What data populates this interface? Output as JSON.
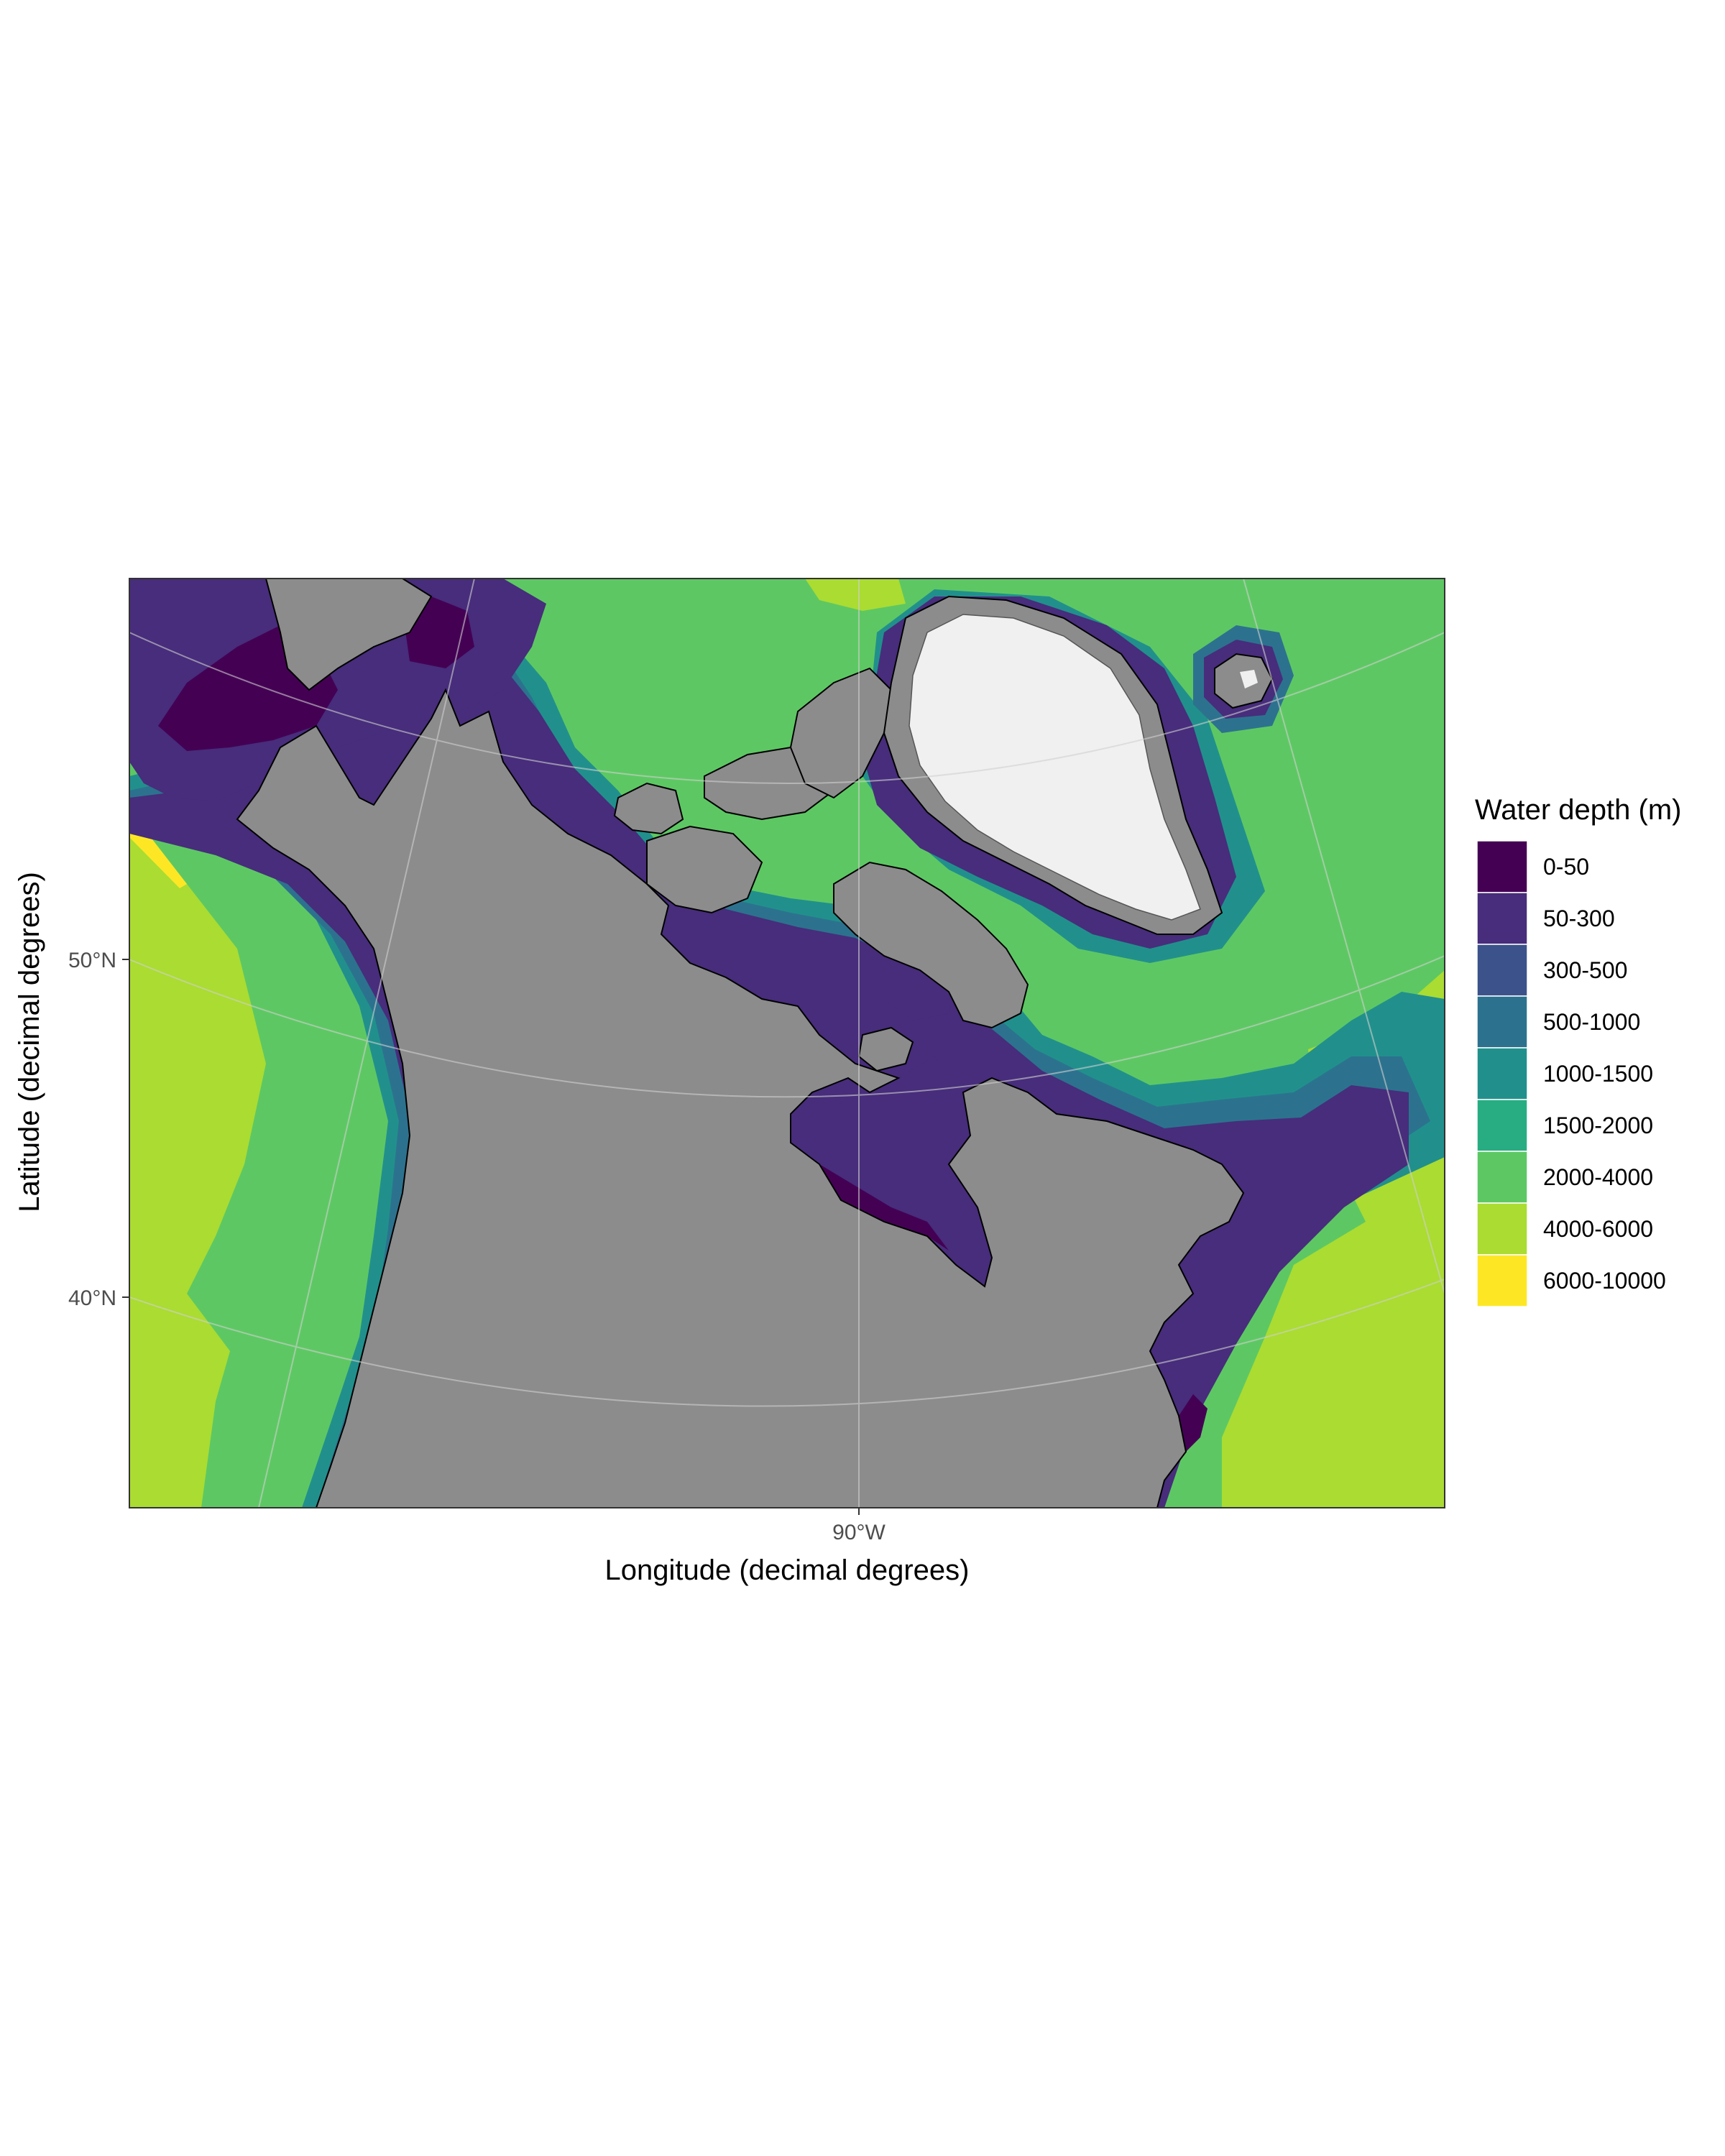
{
  "chart_data": {
    "type": "heatmap",
    "map_kind": "bathymetry",
    "xlabel": "Longitude (decimal degrees)",
    "ylabel": "Latitude (decimal degrees)",
    "x_ticks": [
      "90°W"
    ],
    "y_ticks": [
      "50°N",
      "40°N"
    ],
    "legend": {
      "title": "Water depth (m)",
      "placement": "right",
      "classes": [
        {
          "label": "0-50",
          "color": "#440154"
        },
        {
          "label": "50-300",
          "color": "#472D7B"
        },
        {
          "label": "300-500",
          "color": "#3B528B"
        },
        {
          "label": "500-1000",
          "color": "#2C728E"
        },
        {
          "label": "1000-1500",
          "color": "#21908C"
        },
        {
          "label": "1500-2000",
          "color": "#27AD81"
        },
        {
          "label": "2000-4000",
          "color": "#5DC863"
        },
        {
          "label": "4000-6000",
          "color": "#AADC32"
        },
        {
          "label": "6000-10000",
          "color": "#FDE725"
        }
      ]
    },
    "land_color": "#8c8c8c",
    "ice_color": "#f0f0f0",
    "grid": true
  }
}
